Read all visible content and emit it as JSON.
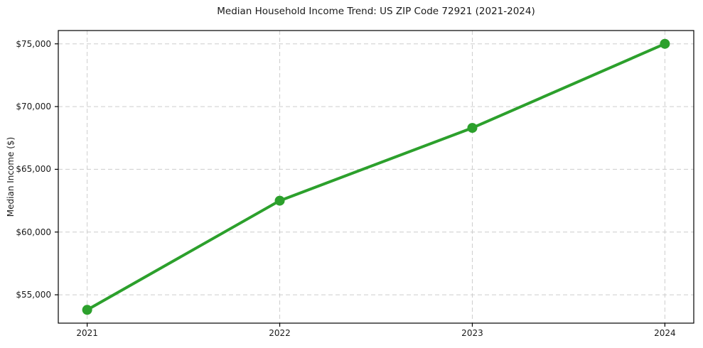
{
  "page": {
    "background": "#ffffff"
  },
  "chart_data": {
    "type": "line",
    "title": "Median Household Income Trend: US ZIP Code 72921 (2021-2024)",
    "xlabel": "",
    "ylabel": "Median Income ($)",
    "x": [
      2021,
      2022,
      2023,
      2024
    ],
    "y": [
      53800,
      62500,
      68300,
      75000
    ],
    "x_tick_labels": [
      "2021",
      "2022",
      "2023",
      "2024"
    ],
    "y_ticks": [
      55000,
      60000,
      65000,
      70000,
      75000
    ],
    "y_tick_labels": [
      "$55,000",
      "$60,000",
      "$65,000",
      "$70,000",
      "$75,000"
    ],
    "xlim": [
      2020.85,
      2024.15
    ],
    "ylim": [
      52740,
      76060
    ],
    "grid": true,
    "grid_style": "dashed",
    "legend": "none",
    "marker": "circle",
    "colors": {
      "line": "#2ca02c",
      "marker": "#2ca02c",
      "grid": "#cdcdcd",
      "spine": "#000000",
      "text": "#1a1a1a",
      "background": "#ffffff"
    }
  }
}
